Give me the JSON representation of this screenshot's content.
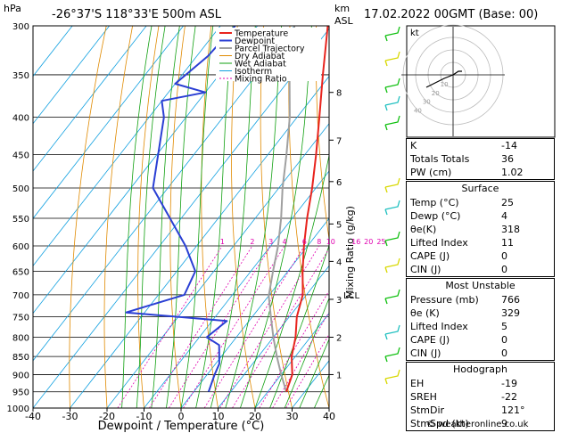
{
  "header": {
    "hpa_label": "hPa",
    "location": "-26°37'S  118°33'E  500m  ASL",
    "km_label": "km",
    "asl_label": "ASL",
    "datetime": "17.02.2022  00GMT  (Base: 00)"
  },
  "axes": {
    "xlabel": "Dewpoint / Temperature (°C)",
    "mixing_ratio_label": "Mixing Ratio (g/kg)",
    "lcl_label": "LCL"
  },
  "legend": [
    "Temperature",
    "Dewpoint",
    "Parcel Trajectory",
    "Dry Adiabat",
    "Wet Adiabat",
    "Isotherm",
    "Mixing Ratio"
  ],
  "colors": {
    "temperature": "#e8241e",
    "dewpoint": "#2a3fd4",
    "parcel": "#a0a0a0",
    "dry_adiabat": "#e08a00",
    "wet_adiabat": "#10a010",
    "isotherm": "#10a0e0",
    "mixing_ratio": "#e000b0"
  },
  "chart_data": {
    "type": "skew-t",
    "pressure_ticks": [
      300,
      350,
      400,
      450,
      500,
      550,
      600,
      650,
      700,
      750,
      800,
      850,
      900,
      950,
      1000
    ],
    "temperature_ticks": [
      -40,
      -30,
      -20,
      -10,
      0,
      10,
      20,
      30,
      40
    ],
    "xlim": [
      -40,
      40
    ],
    "ylim": [
      1000,
      300
    ],
    "km_ticks": [
      {
        "km": "1",
        "p": 900
      },
      {
        "km": "2",
        "p": 800
      },
      {
        "km": "3",
        "p": 710
      },
      {
        "km": "4",
        "p": 630
      },
      {
        "km": "5",
        "p": 560
      },
      {
        "km": "6",
        "p": 490
      },
      {
        "km": "7",
        "p": 430
      },
      {
        "km": "8",
        "p": 370
      }
    ],
    "mixing_ratio_values": [
      "1",
      "2",
      "3",
      "4",
      "6",
      "8",
      "10",
      "16",
      "20",
      "25"
    ],
    "mixing_ratio_label_p": 600,
    "lcl_p": 702,
    "temperature": [
      {
        "p": 950,
        "t": 25
      },
      {
        "p": 900,
        "t": 23
      },
      {
        "p": 850,
        "t": 19
      },
      {
        "p": 800,
        "t": 16
      },
      {
        "p": 750,
        "t": 12
      },
      {
        "p": 700,
        "t": 9
      },
      {
        "p": 650,
        "t": 4
      },
      {
        "p": 600,
        "t": -1
      },
      {
        "p": 550,
        "t": -6
      },
      {
        "p": 500,
        "t": -11
      },
      {
        "p": 450,
        "t": -17
      },
      {
        "p": 400,
        "t": -24
      },
      {
        "p": 350,
        "t": -32
      },
      {
        "p": 300,
        "t": -41
      }
    ],
    "dewpoint": [
      {
        "p": 950,
        "t": 4
      },
      {
        "p": 900,
        "t": 2
      },
      {
        "p": 870,
        "t": 1
      },
      {
        "p": 820,
        "t": -3
      },
      {
        "p": 800,
        "t": -8
      },
      {
        "p": 760,
        "t": -6
      },
      {
        "p": 740,
        "t": -35
      },
      {
        "p": 700,
        "t": -23
      },
      {
        "p": 650,
        "t": -25
      },
      {
        "p": 600,
        "t": -33
      },
      {
        "p": 500,
        "t": -54
      },
      {
        "p": 400,
        "t": -66
      },
      {
        "p": 380,
        "t": -70
      },
      {
        "p": 370,
        "t": -60
      },
      {
        "p": 360,
        "t": -70
      },
      {
        "p": 330,
        "t": -67
      },
      {
        "p": 300,
        "t": -66
      }
    ],
    "parcel": [
      {
        "p": 950,
        "t": 25
      },
      {
        "p": 900,
        "t": 20
      },
      {
        "p": 850,
        "t": 15
      },
      {
        "p": 800,
        "t": 10
      },
      {
        "p": 750,
        "t": 5
      },
      {
        "p": 702,
        "t": 0
      },
      {
        "p": 650,
        "t": -4
      },
      {
        "p": 600,
        "t": -8
      },
      {
        "p": 550,
        "t": -13
      },
      {
        "p": 500,
        "t": -19
      },
      {
        "p": 450,
        "t": -25
      },
      {
        "p": 400,
        "t": -32
      },
      {
        "p": 350,
        "t": -41
      },
      {
        "p": 300,
        "t": -50
      }
    ]
  },
  "hodograph": {
    "unit_label": "kt",
    "ring_labels": [
      "10",
      "20",
      "30",
      "40"
    ]
  },
  "indices": {
    "rows": [
      {
        "label": "K",
        "value": "-14"
      },
      {
        "label": "Totals Totals",
        "value": "36"
      },
      {
        "label": "PW (cm)",
        "value": "1.02"
      }
    ]
  },
  "surface": {
    "title": "Surface",
    "rows": [
      {
        "label": "Temp (°C)",
        "value": "25"
      },
      {
        "label": "Dewp (°C)",
        "value": "4"
      },
      {
        "label": "θe(K)",
        "value": "318"
      },
      {
        "label": "Lifted Index",
        "value": "11"
      },
      {
        "label": "CAPE (J)",
        "value": "0"
      },
      {
        "label": "CIN (J)",
        "value": "0"
      }
    ]
  },
  "most_unstable": {
    "title": "Most Unstable",
    "rows": [
      {
        "label": "Pressure (mb)",
        "value": "766"
      },
      {
        "label": "θe (K)",
        "value": "329"
      },
      {
        "label": "Lifted Index",
        "value": "5"
      },
      {
        "label": "CAPE (J)",
        "value": "0"
      },
      {
        "label": "CIN (J)",
        "value": "0"
      }
    ]
  },
  "hodograph_table": {
    "title": "Hodograph",
    "rows": [
      {
        "label": "EH",
        "value": "-19"
      },
      {
        "label": "SREH",
        "value": "-22"
      },
      {
        "label": "StmDir",
        "value": "121°"
      },
      {
        "label": "StmSpd (kt)",
        "value": "9"
      }
    ]
  },
  "copyright": "© weatheronline.co.uk"
}
